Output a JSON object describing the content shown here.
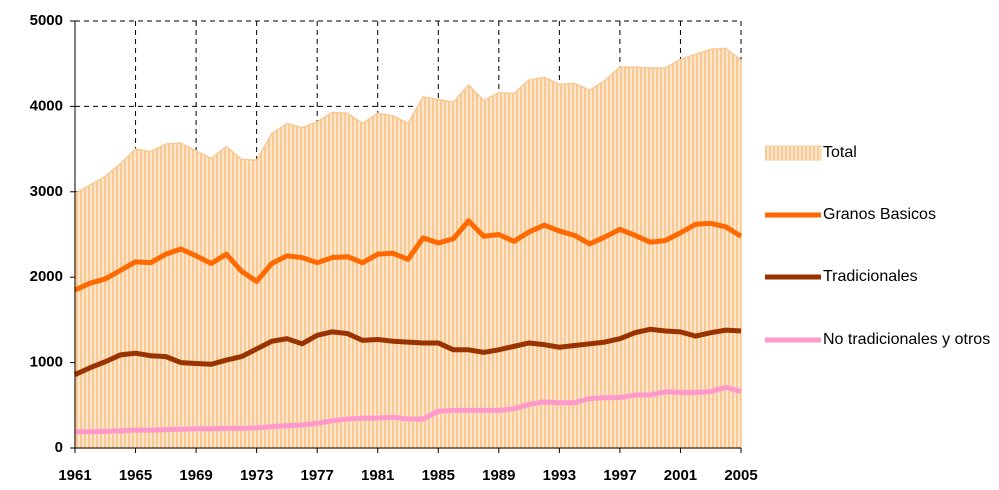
{
  "chart_data": {
    "type": "line",
    "x": [
      1961,
      1962,
      1963,
      1964,
      1965,
      1966,
      1967,
      1968,
      1969,
      1970,
      1971,
      1972,
      1973,
      1974,
      1975,
      1976,
      1977,
      1978,
      1979,
      1980,
      1981,
      1982,
      1983,
      1984,
      1985,
      1986,
      1987,
      1988,
      1989,
      1990,
      1991,
      1992,
      1993,
      1994,
      1995,
      1996,
      1997,
      1998,
      1999,
      2000,
      2001,
      2002,
      2003,
      2004,
      2005
    ],
    "series": [
      {
        "name": "Total",
        "color": "#f9c994",
        "style": "area",
        "values": [
          2980,
          3080,
          3180,
          3330,
          3500,
          3470,
          3560,
          3570,
          3480,
          3390,
          3530,
          3380,
          3370,
          3680,
          3800,
          3750,
          3820,
          3930,
          3920,
          3800,
          3920,
          3890,
          3800,
          4110,
          4080,
          4050,
          4250,
          4070,
          4160,
          4150,
          4310,
          4340,
          4260,
          4270,
          4190,
          4300,
          4460,
          4460,
          4450,
          4450,
          4550,
          4610,
          4670,
          4680,
          4540
        ]
      },
      {
        "name": "Granos Basicos",
        "color": "#ff6a00",
        "style": "line",
        "values": [
          1850,
          1930,
          1980,
          2080,
          2180,
          2170,
          2270,
          2330,
          2250,
          2160,
          2270,
          2070,
          1950,
          2160,
          2250,
          2230,
          2170,
          2230,
          2240,
          2170,
          2270,
          2280,
          2210,
          2460,
          2400,
          2450,
          2660,
          2480,
          2500,
          2420,
          2530,
          2610,
          2540,
          2490,
          2390,
          2470,
          2560,
          2490,
          2410,
          2430,
          2520,
          2620,
          2630,
          2590,
          2480
        ]
      },
      {
        "name": "Tradicionales",
        "color": "#993300",
        "style": "line",
        "values": [
          860,
          940,
          1010,
          1090,
          1110,
          1080,
          1070,
          1000,
          990,
          980,
          1030,
          1070,
          1160,
          1250,
          1280,
          1220,
          1320,
          1360,
          1340,
          1260,
          1270,
          1250,
          1240,
          1230,
          1230,
          1150,
          1150,
          1120,
          1150,
          1190,
          1230,
          1210,
          1180,
          1200,
          1220,
          1240,
          1280,
          1350,
          1390,
          1370,
          1360,
          1310,
          1350,
          1380,
          1370
        ]
      },
      {
        "name": "No tradicionales y otros",
        "color": "#ff99cc",
        "style": "line",
        "values": [
          190,
          190,
          195,
          200,
          210,
          210,
          215,
          220,
          225,
          225,
          230,
          230,
          235,
          250,
          260,
          270,
          290,
          320,
          340,
          350,
          350,
          360,
          340,
          340,
          430,
          440,
          440,
          440,
          440,
          460,
          510,
          540,
          530,
          530,
          580,
          590,
          590,
          620,
          620,
          660,
          650,
          650,
          660,
          710,
          660
        ]
      }
    ],
    "xlim": [
      1961,
      2005
    ],
    "xticks": [
      1961,
      1965,
      1969,
      1973,
      1977,
      1981,
      1985,
      1989,
      1993,
      1997,
      2001,
      2005
    ],
    "ylim": [
      0,
      5000
    ],
    "yticks": [
      0,
      1000,
      2000,
      3000,
      4000,
      5000
    ],
    "grid": true,
    "legend": "right"
  }
}
